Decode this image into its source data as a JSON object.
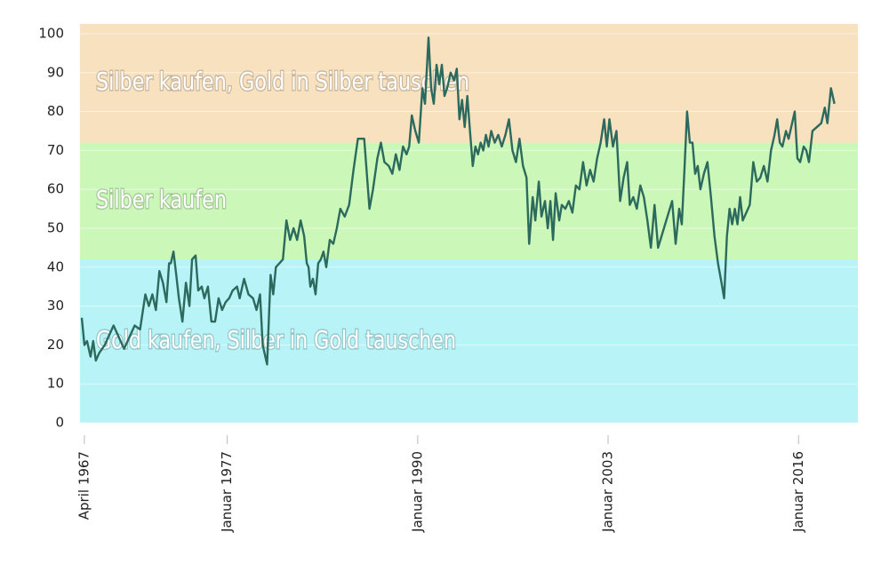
{
  "chart_data": {
    "type": "line",
    "color": "#2b6a5c",
    "xlim": [
      1966.95,
      2020.05
    ],
    "ylim": [
      0,
      102.5
    ],
    "yticks": [
      0,
      10,
      20,
      30,
      40,
      50,
      60,
      70,
      80,
      90,
      100
    ],
    "xticks": [
      {
        "value": 1967.25,
        "label": "April 1967"
      },
      {
        "value": 1977,
        "label": "Januar 1977"
      },
      {
        "value": 1990,
        "label": "Januar 1990"
      },
      {
        "value": 2003,
        "label": "Januar 2003"
      },
      {
        "value": 2016,
        "label": "Januar 2016"
      }
    ],
    "grid": true,
    "zones": [
      {
        "from": 0,
        "to": 42,
        "label": "Gold kaufen, Silber in Gold tauschen",
        "color": "#b7f3f7"
      },
      {
        "from": 42,
        "to": 72,
        "label": "Silber kaufen",
        "color": "#cbf7b9"
      },
      {
        "from": 72,
        "to": 102.5,
        "label": "Silber kaufen, Gold in Silber tauschen",
        "color": "#f8e1bf"
      }
    ],
    "x": [
      1967.07,
      1967.25,
      1967.43,
      1967.67,
      1967.85,
      1968.03,
      1968.27,
      1968.64,
      1968.88,
      1969.24,
      1969.6,
      1969.96,
      1970.32,
      1970.68,
      1971.05,
      1971.41,
      1971.65,
      1971.89,
      1972.13,
      1972.37,
      1972.61,
      1972.85,
      1973.03,
      1973.15,
      1973.33,
      1973.52,
      1973.7,
      1973.94,
      1974.18,
      1974.42,
      1974.6,
      1974.84,
      1975.02,
      1975.26,
      1975.44,
      1975.68,
      1975.92,
      1976.17,
      1976.41,
      1976.65,
      1976.89,
      1977.13,
      1977.37,
      1977.67,
      1977.85,
      1978.15,
      1978.45,
      1978.76,
      1979.0,
      1979.24,
      1979.42,
      1979.72,
      1979.96,
      1980.14,
      1980.32,
      1980.56,
      1980.8,
      1981.04,
      1981.29,
      1981.53,
      1981.77,
      1982.01,
      1982.25,
      1982.43,
      1982.55,
      1982.67,
      1982.85,
      1983.03,
      1983.21,
      1983.39,
      1983.57,
      1983.76,
      1984.0,
      1984.24,
      1984.48,
      1984.72,
      1985.02,
      1985.32,
      1985.62,
      1985.92,
      1986.35,
      1986.71,
      1986.95,
      1987.25,
      1987.49,
      1987.73,
      1988.03,
      1988.27,
      1988.51,
      1988.76,
      1989.0,
      1989.24,
      1989.42,
      1989.6,
      1989.84,
      1990.08,
      1990.32,
      1990.5,
      1990.74,
      1990.92,
      1991.1,
      1991.29,
      1991.47,
      1991.65,
      1991.83,
      1992.01,
      1992.25,
      1992.49,
      1992.67,
      1992.85,
      1993.03,
      1993.21,
      1993.39,
      1993.57,
      1993.76,
      1993.94,
      1994.12,
      1994.3,
      1994.48,
      1994.66,
      1994.84,
      1995.02,
      1995.26,
      1995.5,
      1995.74,
      1995.99,
      1996.23,
      1996.47,
      1996.71,
      1996.95,
      1997.19,
      1997.43,
      1997.61,
      1997.85,
      1998.03,
      1998.27,
      1998.45,
      1998.69,
      1998.88,
      1999.06,
      1999.24,
      1999.42,
      1999.66,
      1999.84,
      2000.08,
      2000.32,
      2000.56,
      2000.8,
      2001.04,
      2001.29,
      2001.53,
      2001.77,
      2002.01,
      2002.25,
      2002.49,
      2002.73,
      2002.91,
      2003.09,
      2003.33,
      2003.57,
      2003.82,
      2004.06,
      2004.3,
      2004.48,
      2004.72,
      2004.96,
      2005.2,
      2005.44,
      2005.68,
      2005.92,
      2006.17,
      2006.41,
      2006.65,
      2006.89,
      2007.13,
      2007.37,
      2007.61,
      2007.85,
      2008.03,
      2008.21,
      2008.39,
      2008.58,
      2008.76,
      2008.94,
      2009.12,
      2009.3,
      2009.54,
      2009.78,
      2010.02,
      2010.26,
      2010.5,
      2010.74,
      2010.92,
      2011.11,
      2011.29,
      2011.47,
      2011.65,
      2011.83,
      2012.01,
      2012.19,
      2012.43,
      2012.67,
      2012.91,
      2013.15,
      2013.39,
      2013.63,
      2013.88,
      2014.12,
      2014.36,
      2014.54,
      2014.72,
      2014.9,
      2015.14,
      2015.32,
      2015.56,
      2015.74,
      2015.92,
      2016.11,
      2016.35,
      2016.53,
      2016.71,
      2016.95,
      2017.25,
      2017.55,
      2017.79,
      2017.97,
      2018.21,
      2018.45
    ],
    "values": [
      27,
      20,
      21,
      17,
      21,
      16,
      18,
      20,
      22,
      25,
      22,
      19,
      22,
      25,
      24,
      33,
      30,
      33,
      29,
      39,
      36,
      31,
      41,
      41,
      44,
      38,
      32,
      26,
      36,
      30,
      42,
      43,
      34,
      35,
      32,
      35,
      26,
      26,
      32,
      29,
      31,
      32,
      34,
      35,
      32,
      37,
      33,
      32,
      29,
      33,
      20,
      15,
      38,
      33,
      40,
      41,
      42,
      52,
      47,
      50,
      47,
      52,
      48,
      41,
      40,
      35,
      37,
      33,
      41,
      42,
      44,
      40,
      47,
      46,
      50,
      55,
      53,
      56,
      65,
      73,
      73,
      55,
      60,
      68,
      72,
      67,
      66,
      64,
      69,
      65,
      71,
      69,
      71,
      79,
      75,
      72,
      86,
      82,
      99,
      86,
      82,
      92,
      87,
      92,
      84,
      86,
      90,
      88,
      91,
      78,
      83,
      76,
      84,
      75,
      66,
      71,
      69,
      72,
      70,
      74,
      71,
      75,
      72,
      74,
      71,
      74,
      78,
      70,
      67,
      73,
      66,
      63,
      46,
      58,
      52,
      62,
      53,
      57,
      50,
      57,
      47,
      59,
      52,
      56,
      55,
      57,
      54,
      61,
      60,
      67,
      61,
      65,
      62,
      68,
      72,
      78,
      71,
      78,
      71,
      75,
      57,
      63,
      67,
      56,
      58,
      55,
      61,
      58,
      52,
      45,
      56,
      45,
      48,
      51,
      54,
      57,
      46,
      55,
      51,
      65,
      80,
      72,
      72,
      64,
      66,
      60,
      64,
      67,
      58,
      48,
      41,
      36,
      32,
      48,
      55,
      51,
      55,
      51,
      58,
      52,
      54,
      56,
      67,
      62,
      63,
      66,
      62,
      70,
      74,
      78,
      72,
      71,
      75,
      73,
      77,
      80,
      68,
      67,
      71,
      70,
      67,
      75,
      76,
      77,
      81,
      77,
      86,
      82
    ]
  }
}
